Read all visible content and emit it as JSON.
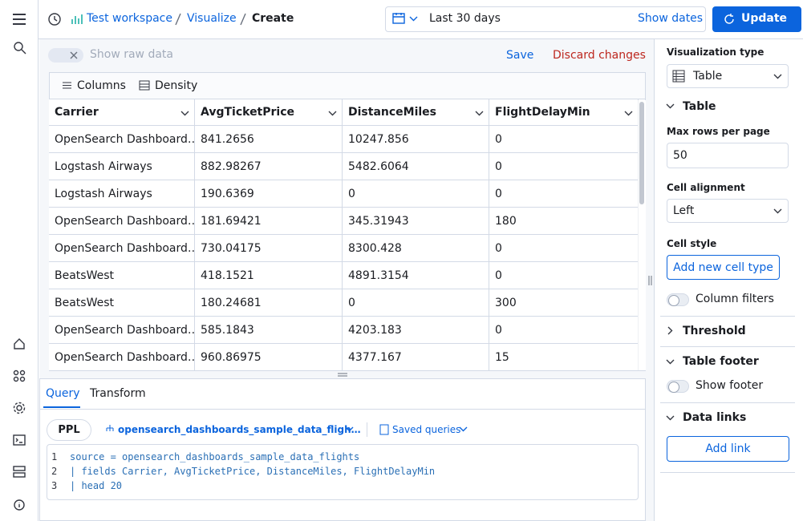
{
  "header": {
    "breadcrumbs": [
      "Test workspace",
      "Visualize",
      "Create"
    ],
    "date_range": "Last 30 days",
    "show_dates": "Show dates",
    "update": "Update"
  },
  "toolbar": {
    "raw_toggle": "Show raw data",
    "save": "Save",
    "discard": "Discard changes"
  },
  "grid": {
    "controls": [
      "Columns",
      "Density"
    ],
    "columns": [
      "Carrier",
      "AvgTicketPrice",
      "DistanceMiles",
      "FlightDelayMin"
    ],
    "rows": [
      [
        "OpenSearch Dashboard…",
        "841.2656",
        "10247.856",
        "0"
      ],
      [
        "Logstash Airways",
        "882.98267",
        "5482.6064",
        "0"
      ],
      [
        "Logstash Airways",
        "190.6369",
        "0",
        "0"
      ],
      [
        "OpenSearch Dashboard…",
        "181.69421",
        "345.31943",
        "180"
      ],
      [
        "OpenSearch Dashboard…",
        "730.04175",
        "8300.428",
        "0"
      ],
      [
        "BeatsWest",
        "418.1521",
        "4891.3154",
        "0"
      ],
      [
        "BeatsWest",
        "180.24681",
        "0",
        "300"
      ],
      [
        "OpenSearch Dashboard…",
        "585.1843",
        "4203.183",
        "0"
      ],
      [
        "OpenSearch Dashboard…",
        "960.86975",
        "4377.167",
        "15"
      ]
    ]
  },
  "query_panel": {
    "tabs": [
      "Query",
      "Transform"
    ],
    "language": "PPL",
    "index": "opensearch_dashboards_sample_data_fligh…",
    "saved_queries": "Saved queries",
    "lines": [
      {
        "number": "1",
        "code": "source = opensearch_dashboards_sample_data_flights"
      },
      {
        "number": "2",
        "code": "| fields Carrier, AvgTicketPrice, DistanceMiles, FlightDelayMin"
      },
      {
        "number": "3",
        "code": "| head 20"
      }
    ]
  },
  "sidebar": {
    "visualization_type": {
      "label": "Visualization type",
      "value": "Table"
    },
    "table_section": {
      "title": "Table",
      "max_rows": {
        "label": "Max rows per page",
        "value": "50"
      },
      "alignment": {
        "label": "Cell alignment",
        "value": "Left"
      },
      "cell_style": {
        "label": "Cell style",
        "button": "Add new cell type"
      },
      "column_filters": "Column filters"
    },
    "threshold": {
      "title": "Threshold"
    },
    "table_footer": {
      "title": "Table footer",
      "toggle": "Show footer"
    },
    "data_links": {
      "title": "Data links",
      "button": "Add link"
    }
  }
}
